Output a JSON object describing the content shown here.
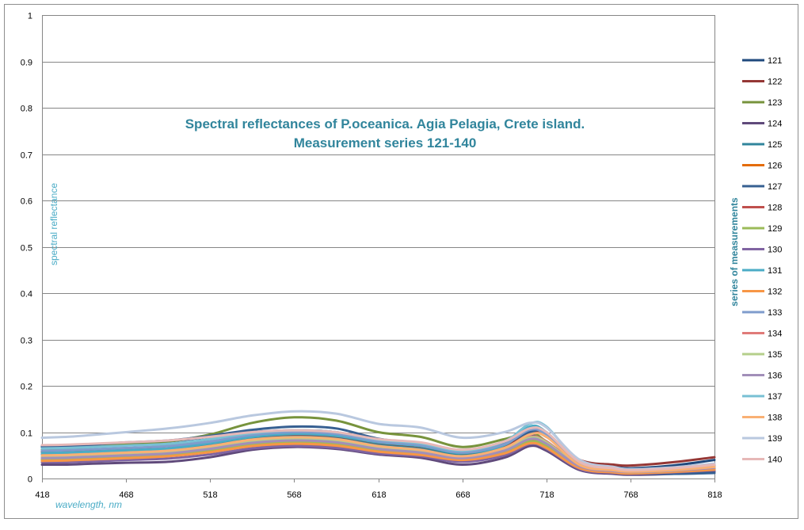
{
  "colors": {
    "title": "#31859C",
    "axis_title": "#4BACC6",
    "legend_title": "#31859C",
    "gridline": "#868686",
    "frame": "#8E8E8E"
  },
  "chart_data": {
    "type": "line",
    "title_lines": [
      "Spectral reflectances of P.oceanica. Agia Pelagia, Crete island.",
      "Measurement series 121-140"
    ],
    "xlabel": "wavelength, nm",
    "ylabel": "spectral reflectance",
    "legend_title": "series of measurements",
    "legend_position": "right",
    "xlim": [
      418,
      818
    ],
    "ylim": [
      0,
      1
    ],
    "x_ticks": [
      "418",
      "468",
      "518",
      "568",
      "618",
      "668",
      "718",
      "768",
      "818"
    ],
    "y_ticks": [
      "0",
      "0.1",
      "0.2",
      "0.3",
      "0.4",
      "0.5",
      "0.6",
      "0.7",
      "0.8",
      "0.9",
      "1"
    ],
    "grid": "horizontal",
    "x": [
      418,
      433,
      448,
      468,
      493,
      518,
      543,
      568,
      593,
      618,
      643,
      668,
      693,
      708,
      718,
      738,
      758,
      768,
      793,
      818
    ],
    "series": [
      {
        "name": "121",
        "color": "#1F497D",
        "values": [
          0.068,
          0.069,
          0.072,
          0.076,
          0.08,
          0.09,
          0.1,
          0.104,
          0.1,
          0.08,
          0.07,
          0.055,
          0.07,
          0.095,
          0.08,
          0.03,
          0.025,
          0.022,
          0.028,
          0.04
        ]
      },
      {
        "name": "122",
        "color": "#953735",
        "values": [
          0.058,
          0.06,
          0.062,
          0.065,
          0.07,
          0.08,
          0.09,
          0.094,
          0.09,
          0.075,
          0.065,
          0.052,
          0.07,
          0.1,
          0.09,
          0.04,
          0.03,
          0.028,
          0.035,
          0.046
        ]
      },
      {
        "name": "123",
        "color": "#77933C",
        "values": [
          0.062,
          0.064,
          0.068,
          0.075,
          0.08,
          0.095,
          0.12,
          0.132,
          0.125,
          0.1,
          0.09,
          0.068,
          0.085,
          0.1,
          0.08,
          0.03,
          0.018,
          0.015,
          0.018,
          0.022
        ]
      },
      {
        "name": "124",
        "color": "#604A7B",
        "values": [
          0.03,
          0.03,
          0.032,
          0.034,
          0.036,
          0.046,
          0.062,
          0.068,
          0.064,
          0.052,
          0.045,
          0.03,
          0.045,
          0.07,
          0.06,
          0.018,
          0.01,
          0.008,
          0.01,
          0.015
        ]
      },
      {
        "name": "125",
        "color": "#31859C",
        "values": [
          0.052,
          0.053,
          0.055,
          0.058,
          0.062,
          0.072,
          0.085,
          0.09,
          0.086,
          0.072,
          0.064,
          0.05,
          0.065,
          0.088,
          0.078,
          0.03,
          0.02,
          0.018,
          0.022,
          0.03
        ]
      },
      {
        "name": "126",
        "color": "#E46C0A",
        "values": [
          0.04,
          0.041,
          0.043,
          0.046,
          0.05,
          0.058,
          0.07,
          0.074,
          0.07,
          0.058,
          0.052,
          0.04,
          0.055,
          0.078,
          0.066,
          0.022,
          0.014,
          0.012,
          0.015,
          0.02
        ]
      },
      {
        "name": "127",
        "color": "#376092",
        "values": [
          0.07,
          0.07,
          0.073,
          0.078,
          0.082,
          0.092,
          0.105,
          0.112,
          0.108,
          0.086,
          0.075,
          0.058,
          0.075,
          0.1,
          0.098,
          0.035,
          0.02,
          0.012,
          0.01,
          0.012
        ]
      },
      {
        "name": "128",
        "color": "#C0504D",
        "values": [
          0.045,
          0.046,
          0.048,
          0.051,
          0.055,
          0.065,
          0.078,
          0.082,
          0.078,
          0.064,
          0.057,
          0.045,
          0.06,
          0.082,
          0.072,
          0.026,
          0.016,
          0.014,
          0.018,
          0.024
        ]
      },
      {
        "name": "129",
        "color": "#9BBB59",
        "values": [
          0.042,
          0.043,
          0.045,
          0.048,
          0.052,
          0.062,
          0.074,
          0.078,
          0.074,
          0.06,
          0.054,
          0.042,
          0.058,
          0.08,
          0.07,
          0.024,
          0.015,
          0.013,
          0.016,
          0.022
        ]
      },
      {
        "name": "130",
        "color": "#8064A2",
        "values": [
          0.035,
          0.035,
          0.037,
          0.04,
          0.043,
          0.052,
          0.065,
          0.07,
          0.066,
          0.054,
          0.048,
          0.036,
          0.05,
          0.074,
          0.064,
          0.02,
          0.012,
          0.01,
          0.013,
          0.018
        ]
      },
      {
        "name": "131",
        "color": "#4BACC6",
        "values": [
          0.055,
          0.056,
          0.058,
          0.061,
          0.065,
          0.076,
          0.09,
          0.096,
          0.092,
          0.078,
          0.07,
          0.055,
          0.072,
          0.112,
          0.1,
          0.032,
          0.02,
          0.017,
          0.02,
          0.028
        ]
      },
      {
        "name": "132",
        "color": "#F79646",
        "values": [
          0.038,
          0.039,
          0.041,
          0.044,
          0.048,
          0.057,
          0.07,
          0.075,
          0.071,
          0.058,
          0.051,
          0.04,
          0.054,
          0.076,
          0.066,
          0.022,
          0.013,
          0.011,
          0.014,
          0.019
        ]
      },
      {
        "name": "133",
        "color": "#7F9CCC",
        "values": [
          0.06,
          0.061,
          0.063,
          0.066,
          0.07,
          0.08,
          0.094,
          0.1,
          0.096,
          0.08,
          0.072,
          0.056,
          0.074,
          0.105,
          0.095,
          0.034,
          0.022,
          0.018,
          0.022,
          0.03
        ]
      },
      {
        "name": "134",
        "color": "#E07B79",
        "values": [
          0.048,
          0.049,
          0.051,
          0.054,
          0.058,
          0.068,
          0.082,
          0.087,
          0.083,
          0.068,
          0.06,
          0.047,
          0.064,
          0.09,
          0.08,
          0.028,
          0.018,
          0.015,
          0.018,
          0.025
        ]
      },
      {
        "name": "135",
        "color": "#B5CF8B",
        "values": [
          0.046,
          0.047,
          0.049,
          0.052,
          0.056,
          0.066,
          0.08,
          0.085,
          0.081,
          0.066,
          0.058,
          0.045,
          0.062,
          0.088,
          0.078,
          0.027,
          0.017,
          0.014,
          0.017,
          0.024
        ]
      },
      {
        "name": "136",
        "color": "#A28FB9",
        "values": [
          0.044,
          0.045,
          0.047,
          0.05,
          0.054,
          0.064,
          0.077,
          0.082,
          0.078,
          0.064,
          0.056,
          0.044,
          0.06,
          0.085,
          0.075,
          0.026,
          0.016,
          0.014,
          0.017,
          0.023
        ]
      },
      {
        "name": "137",
        "color": "#78C0D4",
        "values": [
          0.065,
          0.066,
          0.068,
          0.071,
          0.075,
          0.085,
          0.098,
          0.104,
          0.1,
          0.084,
          0.076,
          0.06,
          0.08,
          0.118,
          0.112,
          0.036,
          0.022,
          0.018,
          0.022,
          0.03
        ]
      },
      {
        "name": "138",
        "color": "#F9B074",
        "values": [
          0.05,
          0.051,
          0.053,
          0.056,
          0.06,
          0.07,
          0.084,
          0.089,
          0.085,
          0.07,
          0.062,
          0.048,
          0.066,
          0.095,
          0.09,
          0.029,
          0.018,
          0.015,
          0.018,
          0.025
        ]
      },
      {
        "name": "139",
        "color": "#B9C8DF",
        "values": [
          0.088,
          0.09,
          0.094,
          0.1,
          0.108,
          0.12,
          0.136,
          0.145,
          0.14,
          0.118,
          0.11,
          0.088,
          0.1,
          0.12,
          0.11,
          0.04,
          0.025,
          0.02,
          0.024,
          0.032
        ]
      },
      {
        "name": "140",
        "color": "#E6B8B7",
        "values": [
          0.072,
          0.073,
          0.075,
          0.078,
          0.082,
          0.09,
          0.1,
          0.104,
          0.1,
          0.085,
          0.078,
          0.062,
          0.08,
          0.108,
          0.1,
          0.035,
          0.022,
          0.018,
          0.022,
          0.03
        ]
      }
    ]
  }
}
